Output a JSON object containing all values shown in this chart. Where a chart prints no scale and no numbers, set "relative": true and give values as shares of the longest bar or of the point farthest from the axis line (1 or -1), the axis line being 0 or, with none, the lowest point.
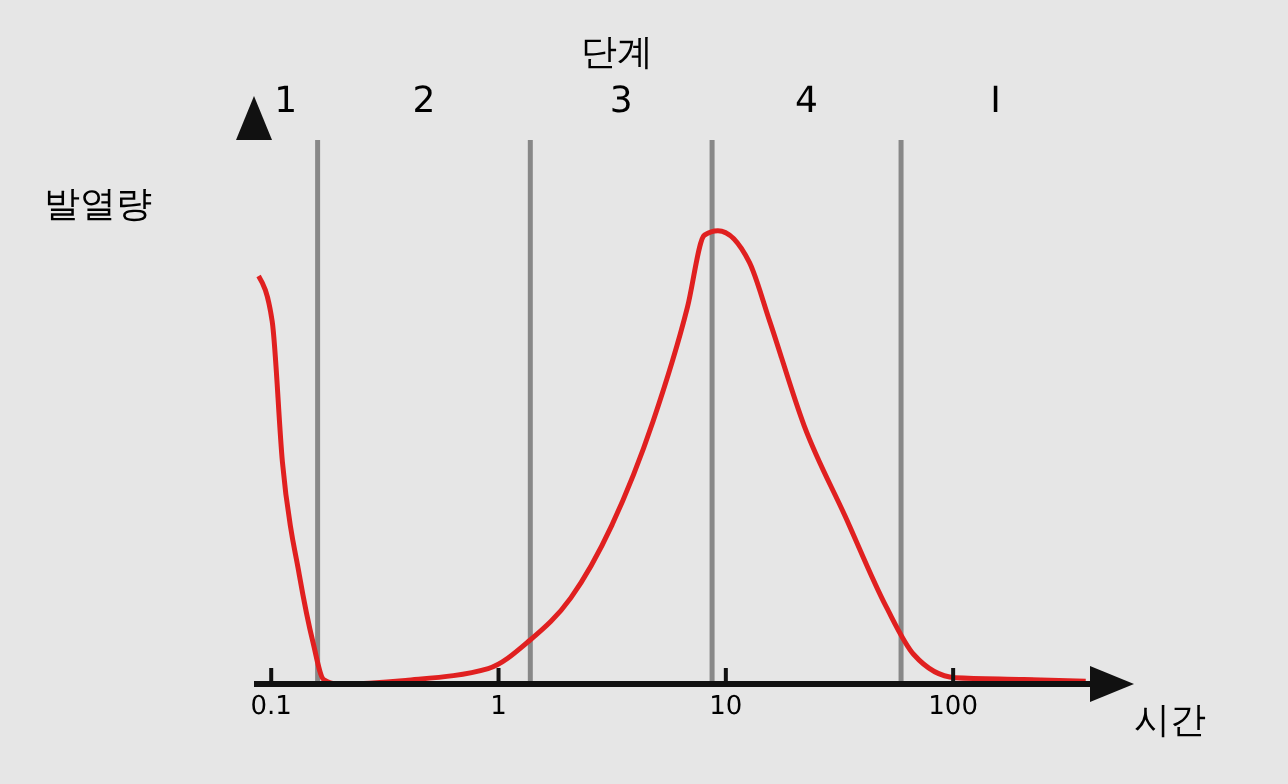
{
  "chart_data": {
    "type": "line",
    "title": "단계",
    "xlabel": "시간",
    "ylabel": "발열량",
    "relative": true,
    "log": "x",
    "marker": "none",
    "line_style": "solid",
    "xlim": [
      0.084,
      400
    ],
    "xticks": [
      {
        "value": 0.1,
        "label": "0.1"
      },
      1,
      10,
      100
    ],
    "x": [
      0.088,
      0.101,
      0.112,
      0.133,
      0.153,
      0.17,
      0.195,
      0.39,
      0.9,
      1.37,
      2.08,
      3.15,
      4.79,
      6.77,
      8.05,
      9.23,
      12.7,
      15.6,
      22.1,
      33.5,
      50.8,
      67.1,
      102,
      204,
      383
    ],
    "series": [
      {
        "color": "#e02020",
        "values": [
          0.9,
          0.8,
          0.49,
          0.24,
          0.09,
          0.01,
          0,
          0.008,
          0.034,
          0.096,
          0.19,
          0.35,
          0.58,
          0.83,
          0.99,
          1.0,
          0.93,
          0.8,
          0.57,
          0.37,
          0.17,
          0.065,
          0.014,
          0.01,
          0.006
        ]
      }
    ],
    "ref_lines": [
      {
        "axis": "x",
        "value": 0.16,
        "color": "#888888"
      },
      {
        "axis": "x",
        "value": 1.38,
        "color": "#888888"
      },
      {
        "axis": "x",
        "value": 8.7,
        "color": "#888888"
      },
      {
        "axis": "x",
        "value": 59,
        "color": "#888888"
      }
    ],
    "annotations": [
      "1",
      "2",
      "3",
      "4",
      "I"
    ]
  }
}
